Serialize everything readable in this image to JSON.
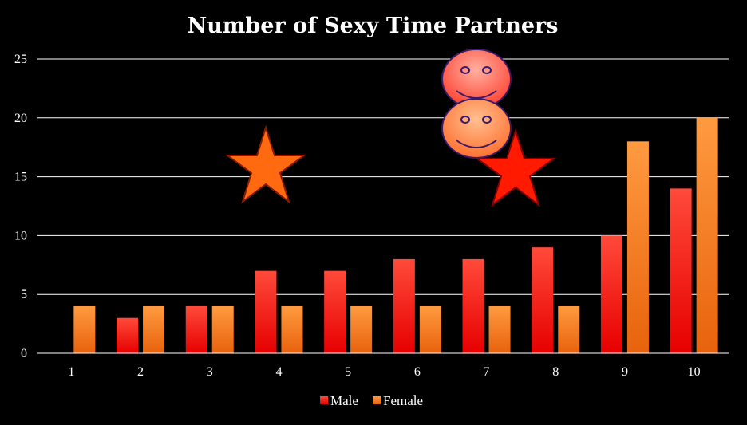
{
  "chart_data": {
    "type": "bar",
    "title": "Number of Sexy Time Partners",
    "xlabel": "",
    "ylabel": "",
    "categories": [
      "1",
      "2",
      "3",
      "4",
      "5",
      "6",
      "7",
      "8",
      "9",
      "10"
    ],
    "series": [
      {
        "name": "Male",
        "values": [
          0,
          3,
          4,
          7,
          7,
          8,
          8,
          9,
          10,
          14
        ],
        "color": "#ff1a1a"
      },
      {
        "name": "Female",
        "values": [
          4,
          4,
          4,
          4,
          4,
          4,
          4,
          4,
          18,
          20
        ],
        "color": "#ff7a1f"
      }
    ],
    "ylim": [
      0,
      25
    ],
    "yticks": [
      0,
      5,
      10,
      15,
      20,
      25
    ],
    "grid": true,
    "legend": "bottom-center"
  },
  "decorations": {
    "stars": [
      {
        "color": "#ff6a10"
      },
      {
        "color": "#ff1a00"
      }
    ],
    "smileys": [
      {
        "color": "#ff5a4a"
      },
      {
        "color": "#ff8a50"
      }
    ]
  }
}
